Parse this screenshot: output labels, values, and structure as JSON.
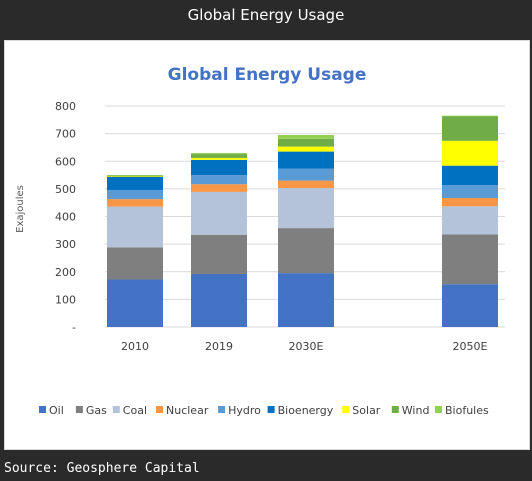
{
  "header": {
    "title": "Global Energy Usage"
  },
  "footer": {
    "source": "Source: Geosphere Capital"
  },
  "colors": {
    "Oil": "#4472c4",
    "Gas": "#7f7f7f",
    "Coal": "#b4c3d9",
    "Nuclear": "#f79646",
    "Hydro": "#5b9bd5",
    "Bioenergy": "#0070c0",
    "Solar": "#ffff00",
    "Wind": "#70ad47",
    "Biofules": "#92d050"
  },
  "chart_data": {
    "type": "bar",
    "stacked": true,
    "title": "Global Energy Usage",
    "ylabel": "Exajoules",
    "xlabel": "",
    "ylim": [
      0,
      800
    ],
    "yticks": [
      0,
      100,
      200,
      300,
      400,
      500,
      600,
      700,
      800
    ],
    "ytick_labels": [
      "-",
      "100",
      "200",
      "300",
      "400",
      "500",
      "600",
      "700",
      "800"
    ],
    "categories": [
      "2010",
      "2019",
      "2030E",
      "2050E"
    ],
    "grid": true,
    "legend": "bottom",
    "series": [
      {
        "name": "Oil",
        "values": [
          172,
          192,
          195,
          155
        ]
      },
      {
        "name": "Gas",
        "values": [
          116,
          142,
          163,
          180
        ]
      },
      {
        "name": "Coal",
        "values": [
          148,
          155,
          145,
          102
        ]
      },
      {
        "name": "Nuclear",
        "values": [
          27,
          28,
          27,
          30
        ]
      },
      {
        "name": "Hydro",
        "values": [
          33,
          33,
          43,
          47
        ]
      },
      {
        "name": "Bioenergy",
        "values": [
          47,
          55,
          62,
          70
        ]
      },
      {
        "name": "Solar",
        "values": [
          2,
          7,
          18,
          90
        ]
      },
      {
        "name": "Wind",
        "values": [
          4,
          14,
          28,
          88
        ]
      },
      {
        "name": "Biofules",
        "values": [
          1,
          4,
          14,
          3
        ]
      }
    ]
  }
}
